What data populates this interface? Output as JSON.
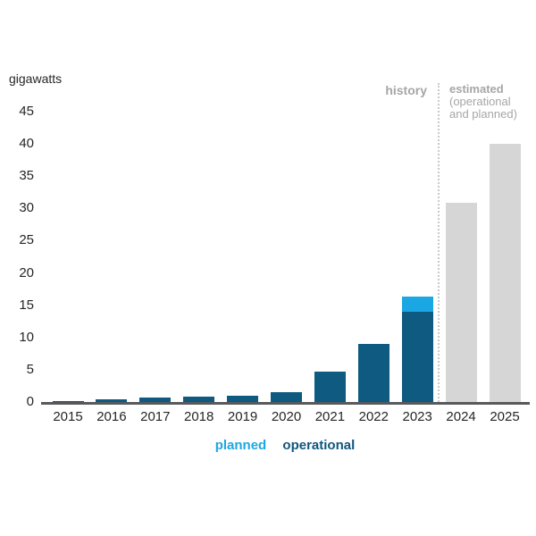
{
  "chart": {
    "unit_label": "gigawatts",
    "annotations": {
      "history": "history",
      "estimated_line1": "estimated",
      "estimated_line2": "(operational",
      "estimated_line3": "and planned)"
    },
    "legend": [
      {
        "label": "planned",
        "color": "#1ba7e3"
      },
      {
        "label": "operational",
        "color": "#10567d"
      }
    ],
    "colors": {
      "operational_bar": "#0e5a80",
      "planned_bar": "#1ba7e3",
      "estimated_bar": "#d6d6d6",
      "axis_line": "#58595b",
      "divider_dotted": "#c9c9c9",
      "annotation_text": "#a6a6a6",
      "tick_text": "#262626"
    }
  },
  "chart_data": {
    "type": "bar",
    "stacked": true,
    "title": "",
    "xlabel": "",
    "ylabel": "gigawatts",
    "categories": [
      "2015",
      "2016",
      "2017",
      "2018",
      "2019",
      "2020",
      "2021",
      "2022",
      "2023",
      "2024",
      "2025"
    ],
    "series": [
      {
        "name": "operational",
        "color": "#0e5a80",
        "values": [
          0.2,
          0.4,
          0.7,
          0.8,
          1.0,
          1.5,
          4.7,
          9.0,
          14.0,
          null,
          null
        ]
      },
      {
        "name": "planned",
        "color": "#1ba7e3",
        "values": [
          null,
          null,
          null,
          null,
          null,
          null,
          null,
          null,
          2.3,
          null,
          null
        ]
      },
      {
        "name": "estimated (operational and planned)",
        "color": "#d6d6d6",
        "values": [
          null,
          null,
          null,
          null,
          null,
          null,
          null,
          null,
          null,
          30.9,
          40.0
        ]
      }
    ],
    "ylim": [
      0,
      45
    ],
    "yticks": [
      0,
      5,
      10,
      15,
      20,
      25,
      30,
      35,
      40,
      45
    ],
    "grid": false,
    "legend_position": "bottom",
    "divider_after_category": "2023",
    "annotations": {
      "left_of_divider": "history",
      "right_of_divider": "estimated (operational and planned)"
    }
  }
}
